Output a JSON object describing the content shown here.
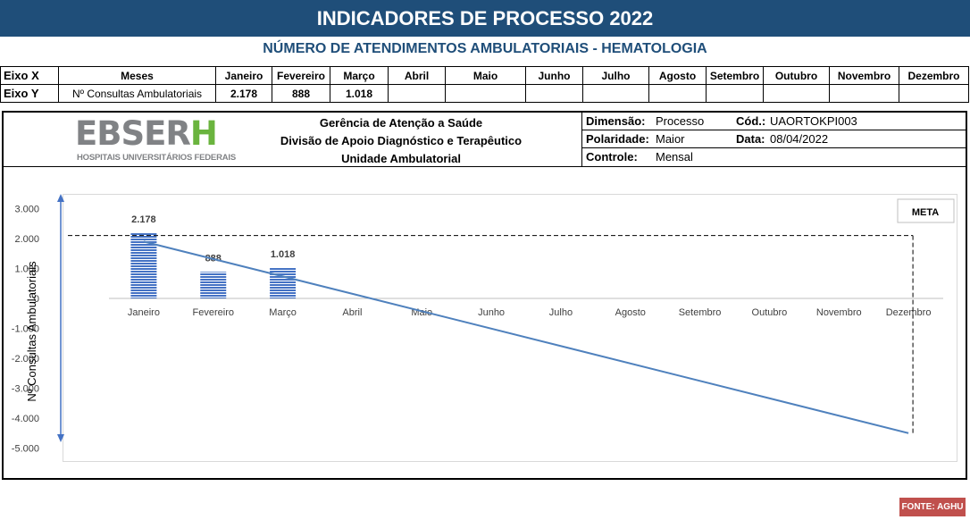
{
  "header": {
    "title": "INDICADORES DE PROCESSO 2022",
    "subtitle": "NÚMERO DE ATENDIMENTOS AMBULATORIAIS - HEMATOLOGIA"
  },
  "axes_table": {
    "row_x_label": "Eixo X",
    "row_y_label": "Eixo Y",
    "x_name": "Meses",
    "y_name": "Nº Consultas Ambulatoriais",
    "months": [
      "Janeiro",
      "Fevereiro",
      "Março",
      "Abril",
      "Maio",
      "Junho",
      "Julho",
      "Agosto",
      "Setembro",
      "Outubro",
      "Novembro",
      "Dezembro"
    ],
    "values": [
      "2.178",
      "888",
      "1.018",
      "",
      "",
      "",
      "",
      "",
      "",
      "",
      "",
      ""
    ]
  },
  "info": {
    "logo_word_gray": "EBSER",
    "logo_word_green": "H",
    "logo_sub": "HOSPITAIS UNIVERSITÁRIOS FEDERAIS",
    "org_line1": "Gerência de Atenção a Saúde",
    "org_line2": "Divisão de Apoio Diagnóstico e Terapêutico",
    "org_line3": "Unidade Ambulatorial",
    "dimensao_label": "Dimensão:",
    "dimensao_value": "Processo",
    "cod_label": "Cód.:",
    "cod_value": "UAORTOKPI003",
    "polaridade_label": "Polaridade:",
    "polaridade_value": "Maior",
    "data_label": "Data:",
    "data_value": "08/04/2022",
    "controle_label": "Controle:",
    "controle_value": "Mensal"
  },
  "chart_data": {
    "type": "bar",
    "categories": [
      "Janeiro",
      "Fevereiro",
      "Março",
      "Abril",
      "Maio",
      "Junho",
      "Julho",
      "Agosto",
      "Setembro",
      "Outubro",
      "Novembro",
      "Dezembro"
    ],
    "series": [
      {
        "values": [
          2178,
          888,
          1018,
          null,
          null,
          null,
          null,
          null,
          null,
          null,
          null,
          null
        ],
        "color": "#4472c4",
        "pattern": "horizontal-stripes"
      }
    ],
    "data_labels": [
      "2.178",
      "888",
      "1.018"
    ],
    "trendline": {
      "type": "linear",
      "from": {
        "x": "Janeiro",
        "y": 1900
      },
      "to": {
        "x": "Dezembro",
        "y": -4500
      },
      "color": "#4f81bd"
    },
    "meta": {
      "label": "META",
      "value": 2100
    },
    "ylabel": "Nº Consultas Ambulatoriais",
    "ylim": [
      -5000,
      3000
    ],
    "yticks": [
      3000,
      2000,
      1000,
      0,
      -1000,
      -2000,
      -3000,
      -4000,
      -5000
    ],
    "ytick_labels": [
      "3.000",
      "2.000",
      "1.000",
      "0",
      "-1.000",
      "-2.000",
      "-3.000",
      "-4.000",
      "-5.000"
    ],
    "grid": false,
    "legend": "top-right"
  },
  "footer": {
    "source": "FONTE: AGHU"
  }
}
